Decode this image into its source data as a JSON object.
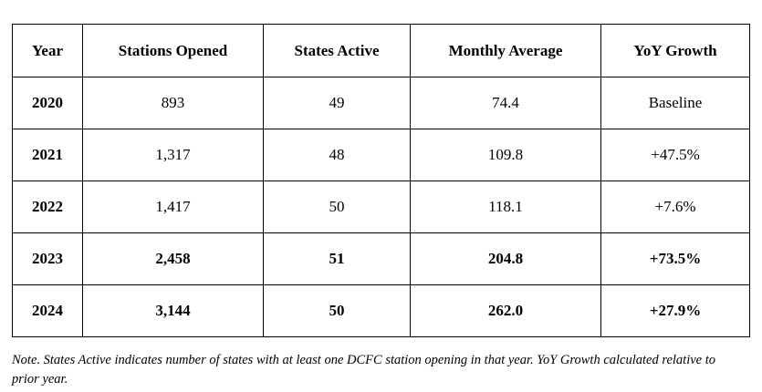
{
  "table": {
    "headers": [
      "Year",
      "Stations Opened",
      "States Active",
      "Monthly Average",
      "YoY Growth"
    ],
    "rows": [
      {
        "year": "2020",
        "stations": "893",
        "states": "49",
        "monthly": "74.4",
        "yoy": "Baseline",
        "bold": false
      },
      {
        "year": "2021",
        "stations": "1,317",
        "states": "48",
        "monthly": "109.8",
        "yoy": "+47.5%",
        "bold": false
      },
      {
        "year": "2022",
        "stations": "1,417",
        "states": "50",
        "monthly": "118.1",
        "yoy": "+7.6%",
        "bold": false
      },
      {
        "year": "2023",
        "stations": "2,458",
        "states": "51",
        "monthly": "204.8",
        "yoy": "+73.5%",
        "bold": true
      },
      {
        "year": "2024",
        "stations": "3,144",
        "states": "50",
        "monthly": "262.0",
        "yoy": "+27.9%",
        "bold": true
      }
    ]
  },
  "note": "Note. States Active indicates number of states with at least one DCFC station opening in that year. YoY Growth calculated relative to prior year."
}
